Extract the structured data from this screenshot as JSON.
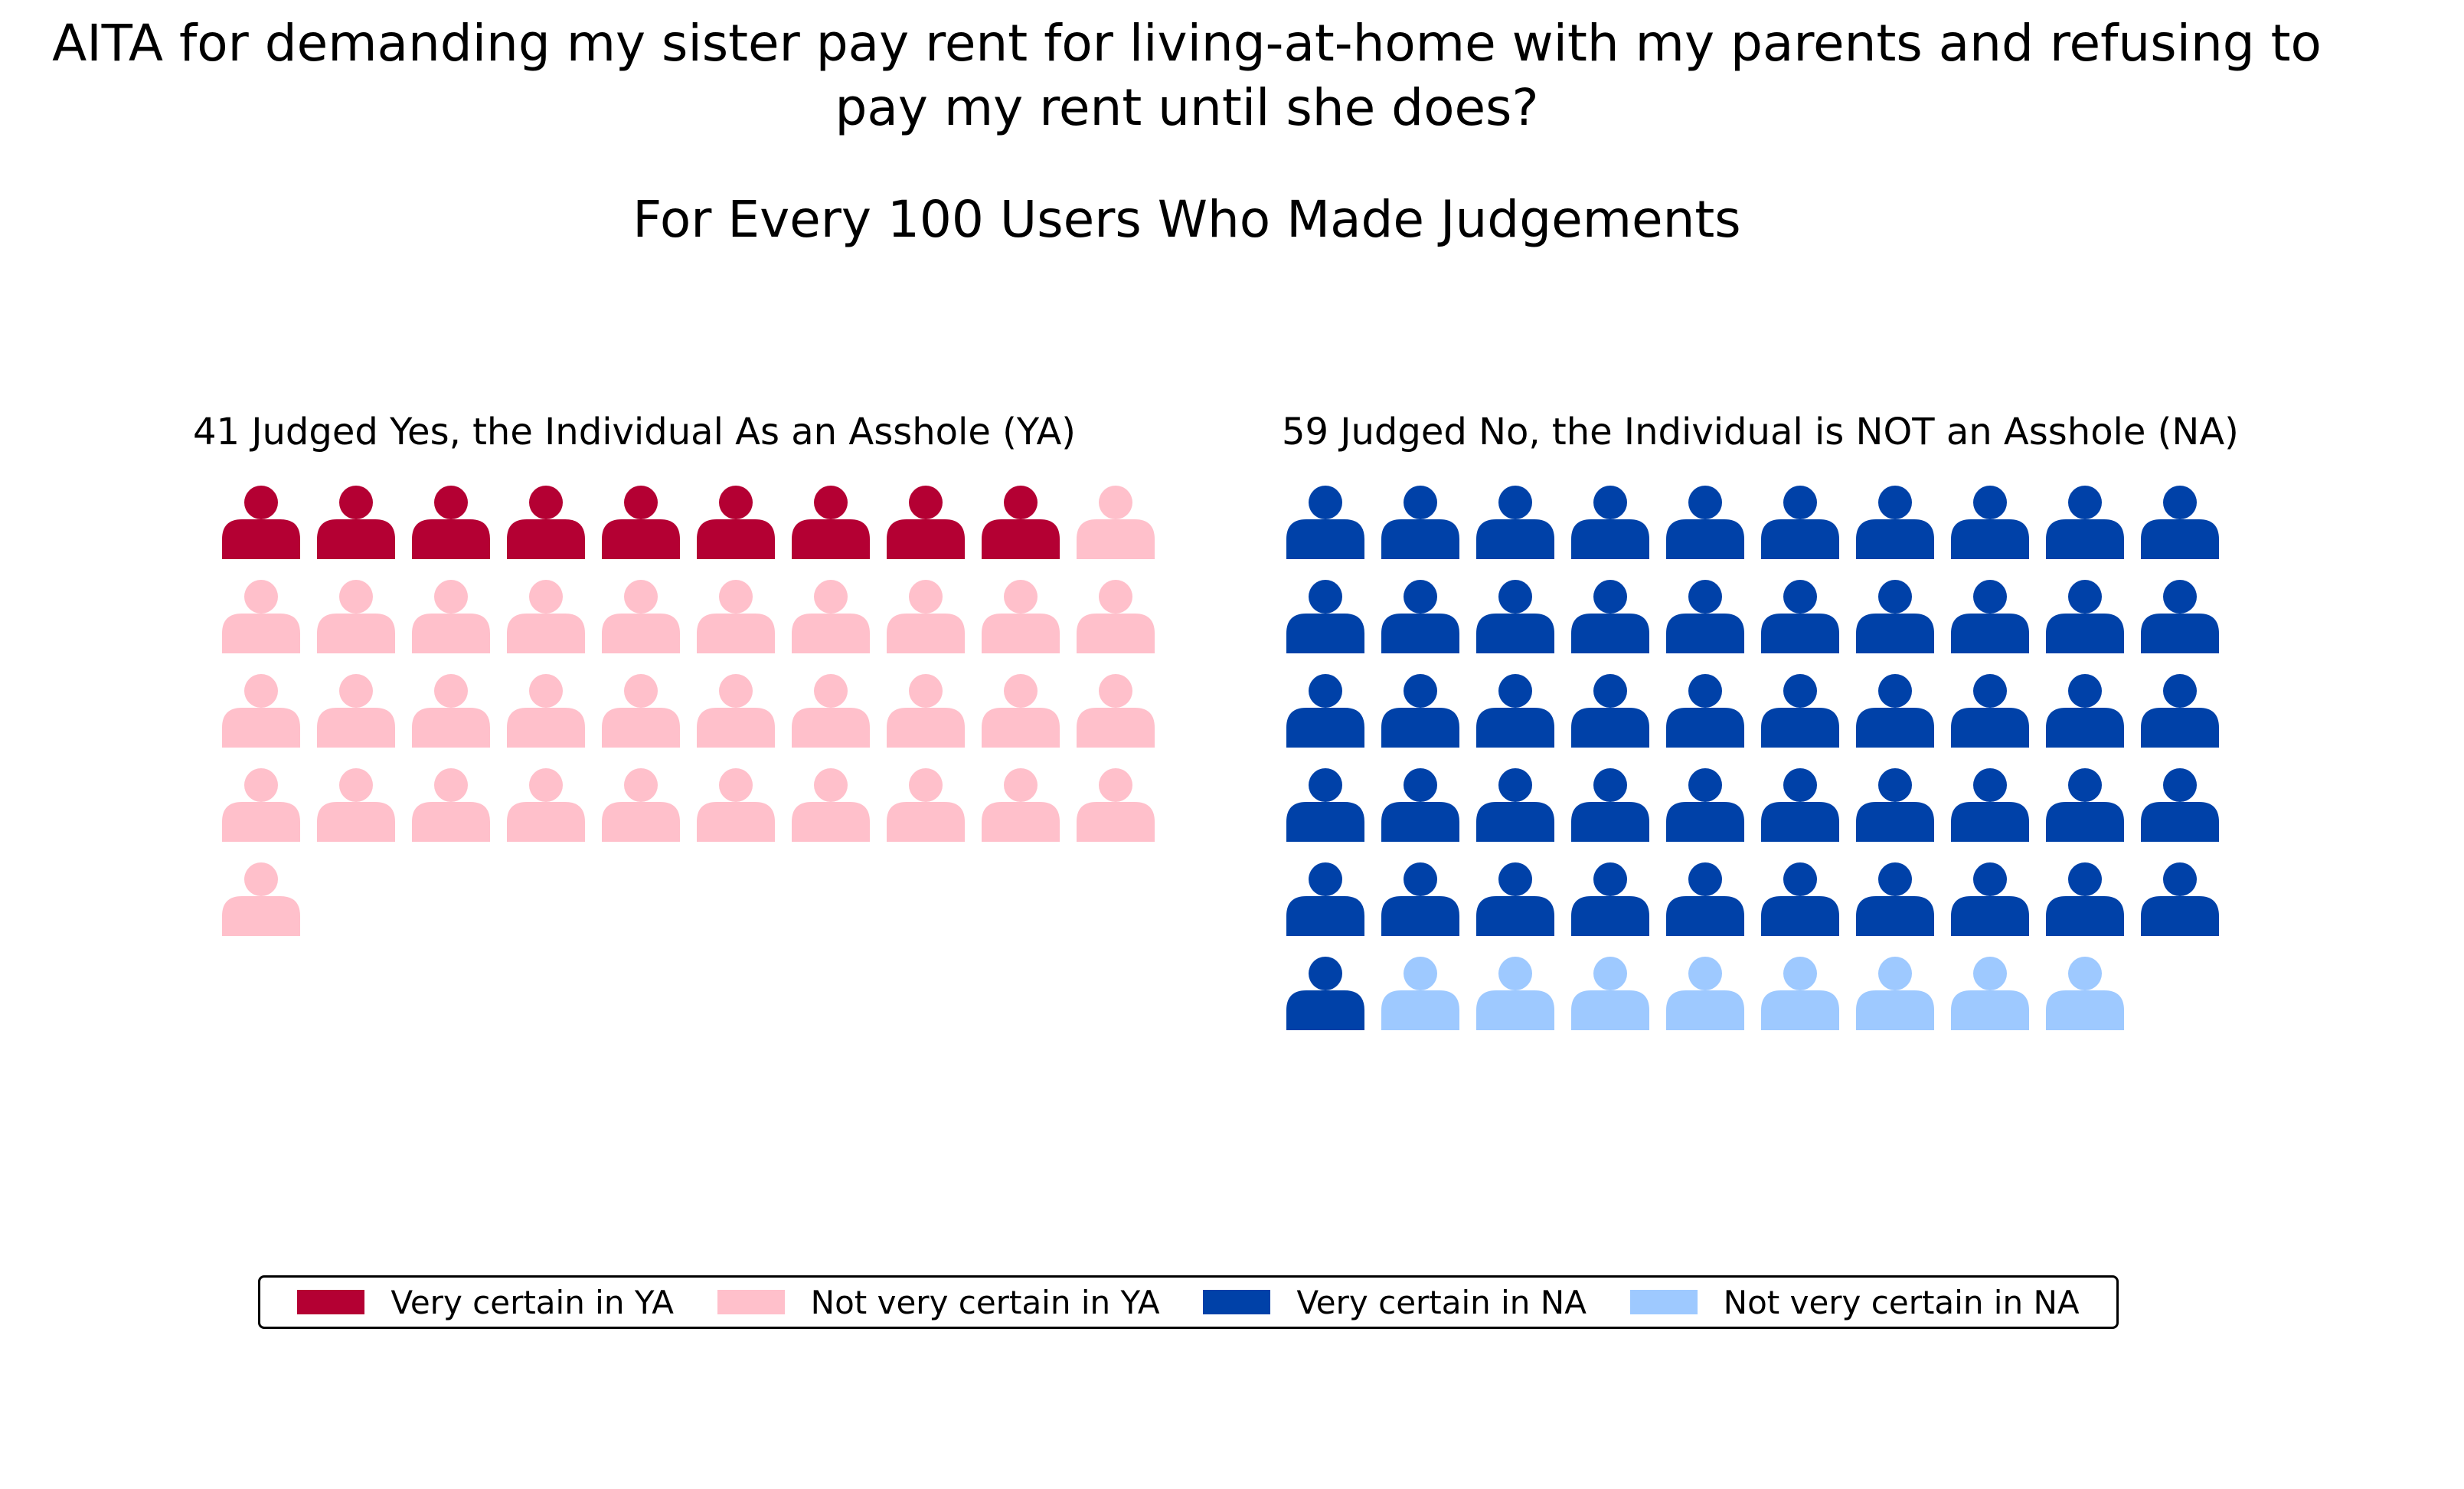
{
  "title_lines": [
    "AITA for demanding my sister pay rent for living-at-home with my parents and refusing to",
    "pay my rent until she does?"
  ],
  "subtitle": "For Every 100 Users Who Made Judgements",
  "chart_data": {
    "type": "waffle",
    "title": "AITA for demanding my sister pay rent for living-at-home with my parents and refusing to pay my rent until she does?",
    "subtitle": "For Every 100 Users Who Made Judgements",
    "total": 100,
    "columns_per_row": 10,
    "panels": [
      {
        "title": "41 Judged Yes, the Individual As an Asshole (YA)",
        "total": 41,
        "segments": [
          {
            "name": "Very certain in YA",
            "count": 9,
            "color": "#b40033"
          },
          {
            "name": "Not very certain in YA",
            "count": 32,
            "color": "#ffc0cb"
          }
        ]
      },
      {
        "title": "59 Judged No, the Individual is NOT an Asshole (NA)",
        "total": 59,
        "segments": [
          {
            "name": "Very certain in NA",
            "count": 51,
            "color": "#0041a8"
          },
          {
            "name": "Not very certain in NA",
            "count": 8,
            "color": "#9ec9ff"
          }
        ]
      }
    ],
    "legend": {
      "placement": "bottom-center",
      "entries": [
        {
          "label": "Very certain in YA",
          "color": "#b40033"
        },
        {
          "label": "Not very certain in YA",
          "color": "#ffc0cb"
        },
        {
          "label": "Very certain in NA",
          "color": "#0041a8"
        },
        {
          "label": "Not very certain in NA",
          "color": "#9ec9ff"
        }
      ]
    },
    "icon": "person-icon"
  }
}
